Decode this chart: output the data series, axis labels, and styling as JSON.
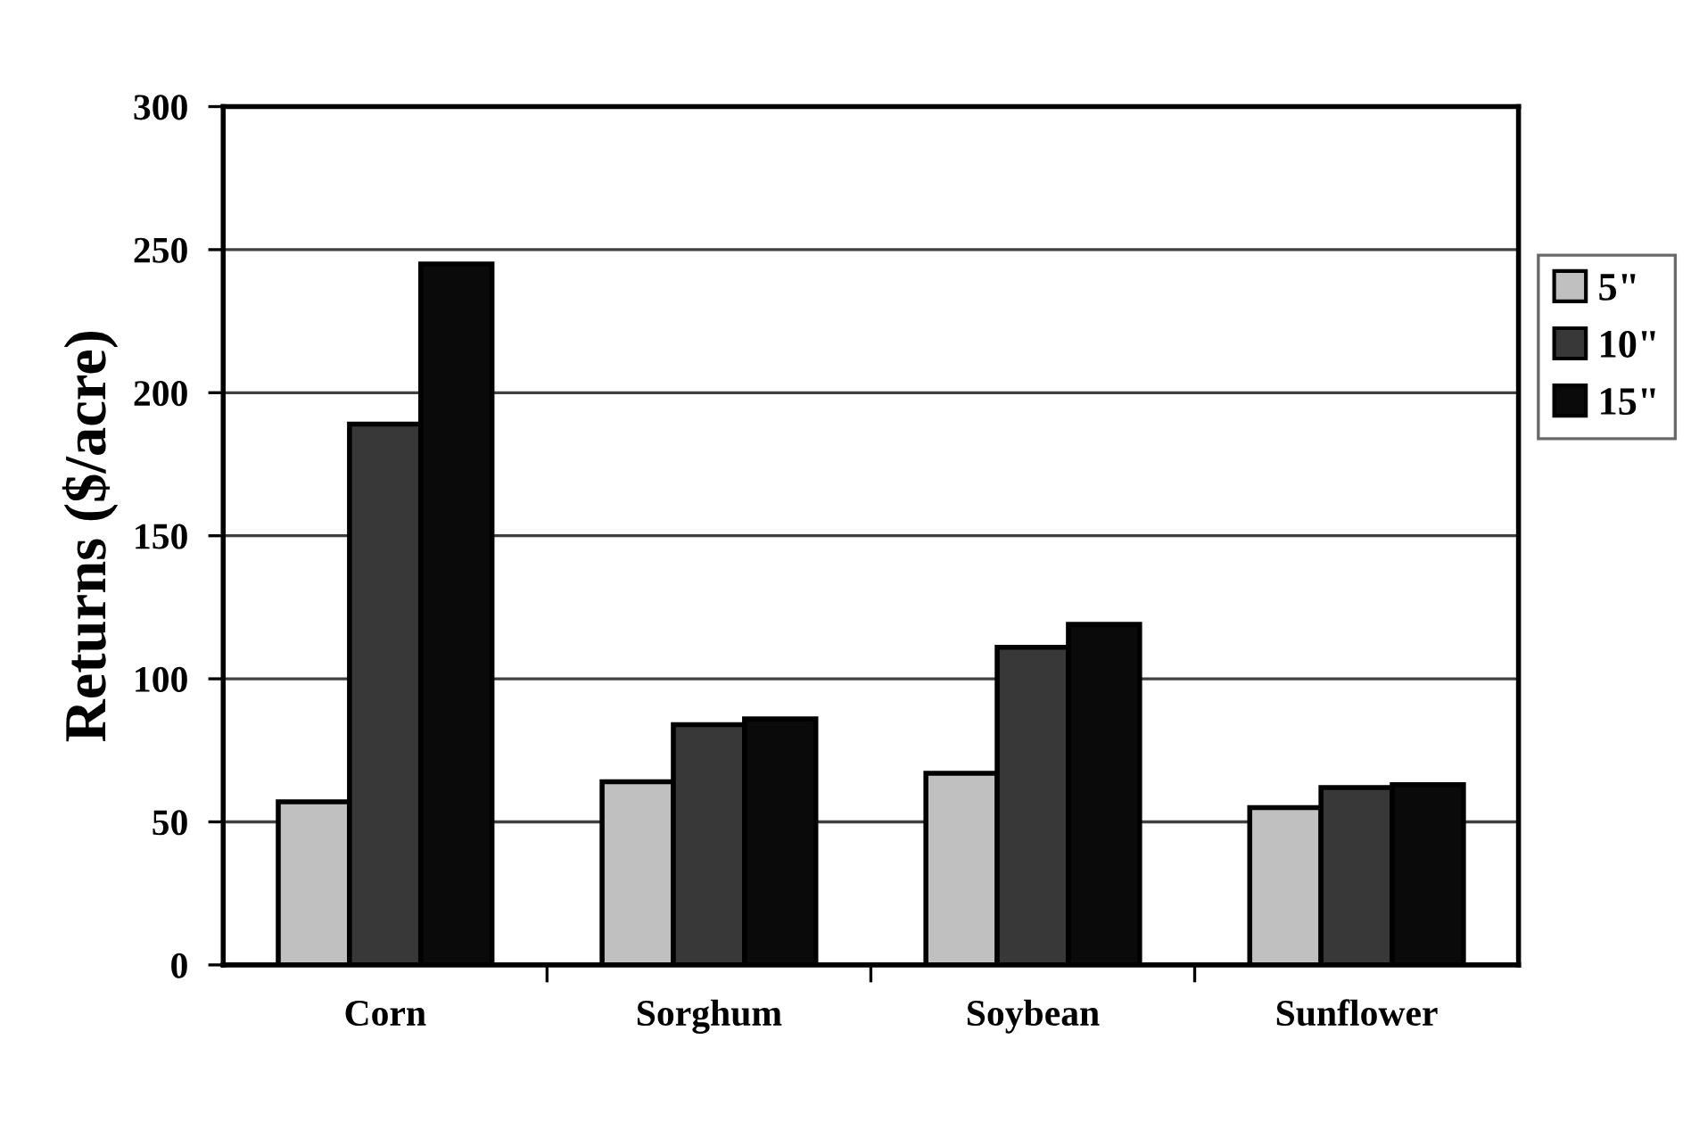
{
  "chart_data": {
    "type": "bar",
    "ylabel": "Returns ($/acre)",
    "categories": [
      "Corn",
      "Sorghum",
      "Soybean",
      "Sunflower"
    ],
    "series": [
      {
        "name": "5\"",
        "color": "#c0c0c0",
        "values": [
          57,
          64,
          67,
          55
        ]
      },
      {
        "name": "10\"",
        "color": "#383838",
        "values": [
          189,
          84,
          111,
          62
        ]
      },
      {
        "name": "15\"",
        "color": "#0a0a0a",
        "values": [
          245,
          86,
          119,
          63
        ]
      }
    ],
    "ylim": [
      0,
      300
    ],
    "yticks": [
      0,
      50,
      100,
      150,
      200,
      250,
      300
    ],
    "grid": "y",
    "legend": "right"
  }
}
